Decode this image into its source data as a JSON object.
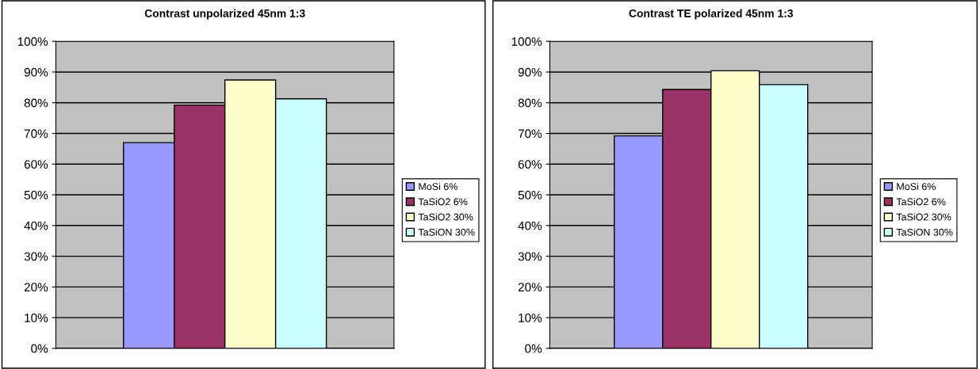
{
  "chart_data": [
    {
      "type": "bar",
      "title": "Contrast unpolarized 45nm 1:3",
      "categories": [
        null
      ],
      "series": [
        {
          "name": "MoSi 6%",
          "color": "#9999ff",
          "values": [
            67
          ]
        },
        {
          "name": "TaSiO2 6%",
          "color": "#993366",
          "values": [
            79.2
          ]
        },
        {
          "name": "TaSiO2 30%",
          "color": "#ffffcc",
          "values": [
            87.4
          ]
        },
        {
          "name": "TaSiON 30%",
          "color": "#ccffff",
          "values": [
            81.3
          ]
        }
      ],
      "ylim": [
        0,
        100
      ],
      "yticks": [
        {
          "value": 0,
          "label": "0%"
        },
        {
          "value": 10,
          "label": "10%"
        },
        {
          "value": 20,
          "label": "20%"
        },
        {
          "value": 30,
          "label": "30%"
        },
        {
          "value": 40,
          "label": "40%"
        },
        {
          "value": 50,
          "label": "50%"
        },
        {
          "value": 60,
          "label": "60%"
        },
        {
          "value": 70,
          "label": "70%"
        },
        {
          "value": 80,
          "label": "80%"
        },
        {
          "value": 90,
          "label": "90%"
        },
        {
          "value": 100,
          "label": "100%"
        }
      ],
      "grid": "y",
      "legend": "right"
    },
    {
      "type": "bar",
      "title": "Contrast TE polarized 45nm 1:3",
      "categories": [
        null
      ],
      "series": [
        {
          "name": "MoSi 6%",
          "color": "#9999ff",
          "values": [
            69.2
          ]
        },
        {
          "name": "TaSiO2 6%",
          "color": "#993366",
          "values": [
            84.3
          ]
        },
        {
          "name": "TaSiO2 30%",
          "color": "#ffffcc",
          "values": [
            90.4
          ]
        },
        {
          "name": "TaSiON 30%",
          "color": "#ccffff",
          "values": [
            85.9
          ]
        }
      ],
      "ylim": [
        0,
        100
      ],
      "yticks": [
        {
          "value": 0,
          "label": "0%"
        },
        {
          "value": 10,
          "label": "10%"
        },
        {
          "value": 20,
          "label": "20%"
        },
        {
          "value": 30,
          "label": "30%"
        },
        {
          "value": 40,
          "label": "40%"
        },
        {
          "value": 50,
          "label": "50%"
        },
        {
          "value": 60,
          "label": "60%"
        },
        {
          "value": 70,
          "label": "70%"
        },
        {
          "value": 80,
          "label": "80%"
        },
        {
          "value": 90,
          "label": "90%"
        },
        {
          "value": 100,
          "label": "100%"
        }
      ],
      "grid": "y",
      "legend": "right"
    }
  ]
}
